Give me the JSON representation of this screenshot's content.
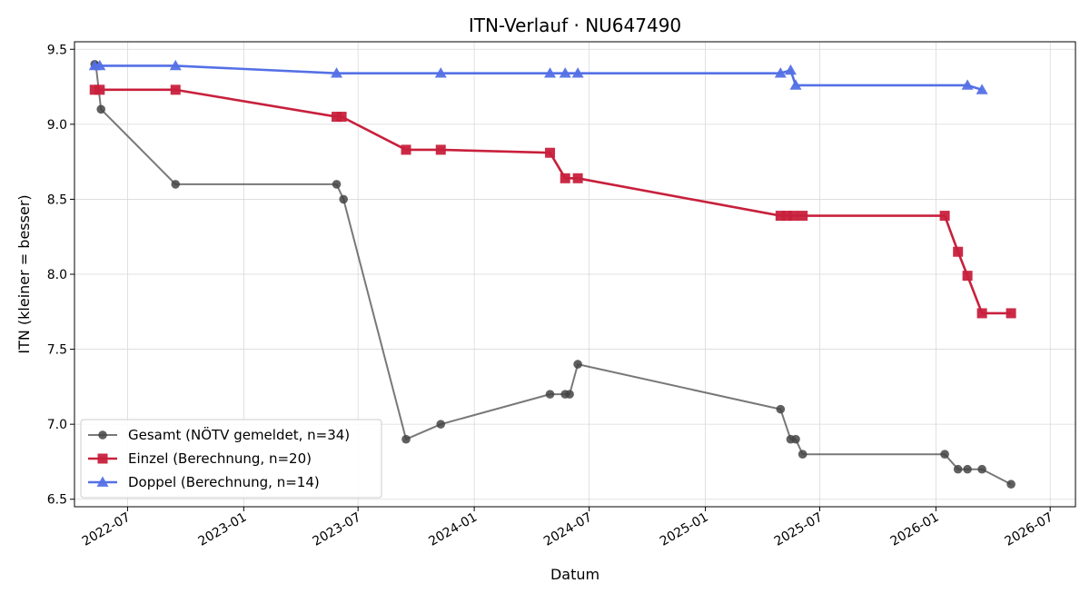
{
  "chart_data": {
    "type": "line",
    "title": "ITN-Verlauf · NU647490",
    "xlabel": "Datum",
    "ylabel": "ITN  (kleiner = besser)",
    "xlim": [
      "2022-04-08",
      "2026-08-10"
    ],
    "ylim": [
      6.45,
      9.55
    ],
    "x_ticks": [
      "2022-07-01",
      "2023-01-01",
      "2023-07-01",
      "2024-01-01",
      "2024-07-01",
      "2025-01-01",
      "2025-07-01",
      "2026-01-01",
      "2026-07-01"
    ],
    "x_tick_labels": [
      "2022-07",
      "2023-01",
      "2023-07",
      "2024-01",
      "2024-07",
      "2025-01",
      "2025-07",
      "2026-01",
      "2026-07"
    ],
    "y_ticks": [
      6.5,
      7.0,
      7.5,
      8.0,
      8.5,
      9.0,
      9.5
    ],
    "y_tick_labels": [
      "6.5",
      "7.0",
      "7.5",
      "8.0",
      "8.5",
      "9.0",
      "9.5"
    ],
    "grid": true,
    "legend_position": "lower-left",
    "series": [
      {
        "name": "Gesamt (NÖTV gemeldet, n=34)",
        "color": "#444444",
        "marker": "circle",
        "points": [
          [
            "2022-05-10",
            9.4
          ],
          [
            "2022-05-12",
            9.39
          ],
          [
            "2022-05-20",
            9.1
          ],
          [
            "2022-09-15",
            8.6
          ],
          [
            "2023-05-28",
            8.6
          ],
          [
            "2023-06-08",
            8.5
          ],
          [
            "2023-09-15",
            6.9
          ],
          [
            "2023-11-09",
            7.0
          ],
          [
            "2024-04-30",
            7.2
          ],
          [
            "2024-05-24",
            7.2
          ],
          [
            "2024-05-31",
            7.2
          ],
          [
            "2024-06-13",
            7.4
          ],
          [
            "2025-04-30",
            7.1
          ],
          [
            "2025-05-16",
            6.9
          ],
          [
            "2025-05-24",
            6.9
          ],
          [
            "2025-06-04",
            6.8
          ],
          [
            "2026-01-15",
            6.8
          ],
          [
            "2026-02-05",
            6.7
          ],
          [
            "2026-02-20",
            6.7
          ],
          [
            "2026-03-15",
            6.7
          ],
          [
            "2026-04-30",
            6.6
          ]
        ]
      },
      {
        "name": "Einzel (Berechnung, n=20)",
        "color": "#c8203c",
        "marker": "square",
        "points": [
          [
            "2022-05-10",
            9.23
          ],
          [
            "2022-05-18",
            9.23
          ],
          [
            "2022-09-15",
            9.23
          ],
          [
            "2023-05-28",
            9.05
          ],
          [
            "2023-06-05",
            9.05
          ],
          [
            "2023-09-15",
            8.83
          ],
          [
            "2023-11-09",
            8.83
          ],
          [
            "2024-04-30",
            8.81
          ],
          [
            "2024-05-24",
            8.64
          ],
          [
            "2024-06-13",
            8.64
          ],
          [
            "2025-04-30",
            8.39
          ],
          [
            "2025-05-10",
            8.39
          ],
          [
            "2025-05-20",
            8.39
          ],
          [
            "2025-06-04",
            8.39
          ],
          [
            "2026-01-15",
            8.39
          ],
          [
            "2026-02-05",
            8.15
          ],
          [
            "2026-02-20",
            7.99
          ],
          [
            "2026-03-15",
            7.74
          ],
          [
            "2026-04-30",
            7.74
          ]
        ]
      },
      {
        "name": "Doppel (Berechnung, n=14)",
        "color": "#5470e6",
        "marker": "triangle",
        "points": [
          [
            "2022-05-10",
            9.39
          ],
          [
            "2022-05-18",
            9.39
          ],
          [
            "2022-09-15",
            9.39
          ],
          [
            "2023-05-28",
            9.34
          ],
          [
            "2023-11-09",
            9.34
          ],
          [
            "2024-04-30",
            9.34
          ],
          [
            "2024-05-24",
            9.34
          ],
          [
            "2024-06-13",
            9.34
          ],
          [
            "2025-04-30",
            9.34
          ],
          [
            "2025-05-16",
            9.36
          ],
          [
            "2025-05-24",
            9.26
          ],
          [
            "2026-02-20",
            9.26
          ],
          [
            "2026-03-15",
            9.23
          ]
        ]
      }
    ]
  }
}
